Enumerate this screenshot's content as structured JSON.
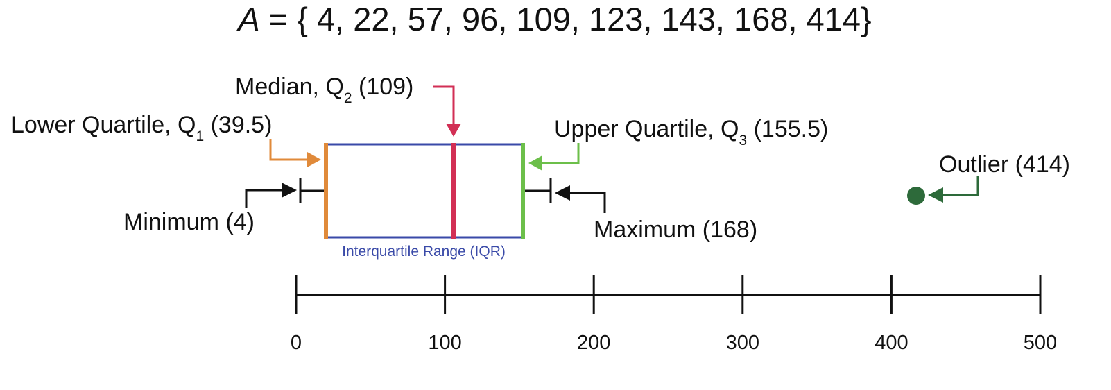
{
  "set": {
    "name": "A",
    "equals_brace": " = {",
    "members_text": " 4, 22, 57, 96, 109, 123, 143, 168, 414}"
  },
  "labels": {
    "median_prefix": "Median, Q",
    "median_sub": "2",
    "median_value": " (109)",
    "lower_prefix": "Lower Quartile, Q",
    "lower_sub": "1",
    "lower_value": " (39.5)",
    "upper_prefix": "Upper Quartile, Q",
    "upper_sub": "3",
    "upper_value": " (155.5)",
    "minimum": "Minimum (4)",
    "maximum": "Maximum (168)",
    "outlier": "Outlier (414)",
    "iqr": "Interquartile Range (IQR)"
  },
  "axis": {
    "ticks": [
      "0",
      "100",
      "200",
      "300",
      "400",
      "500"
    ]
  },
  "colors": {
    "box": "#3a4aa8",
    "q1": "#e08a3a",
    "median": "#d22f55",
    "q3": "#6cbf4a",
    "outlier": "#2d6a3a",
    "ink": "#111111"
  }
}
